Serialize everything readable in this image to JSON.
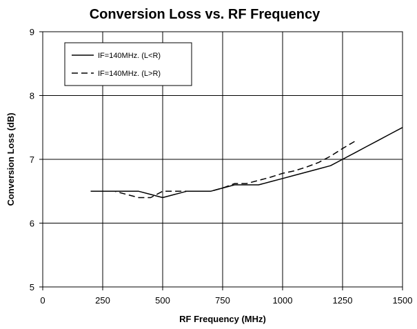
{
  "chart_data": {
    "type": "line",
    "title": "Conversion Loss vs. RF Frequency",
    "xlabel": "RF Frequency (MHz)",
    "ylabel": "Conversion Loss (dB)",
    "xlim": [
      0,
      1500
    ],
    "ylim": [
      5,
      9
    ],
    "xticks": [
      0,
      250,
      500,
      750,
      1000,
      1250,
      1500
    ],
    "yticks": [
      5,
      6,
      7,
      8,
      9
    ],
    "grid": true,
    "legend_position": "top-left",
    "series": [
      {
        "name": "IF=140MHz. (L<R)",
        "style": "solid",
        "color": "#000000",
        "x": [
          200,
          250,
          300,
          350,
          400,
          450,
          500,
          550,
          600,
          650,
          700,
          750,
          800,
          850,
          900,
          950,
          1000,
          1050,
          1100,
          1150,
          1200,
          1250,
          1300,
          1350,
          1400,
          1450,
          1500
        ],
        "y": [
          6.5,
          6.5,
          6.5,
          6.5,
          6.5,
          6.45,
          6.4,
          6.45,
          6.5,
          6.5,
          6.5,
          6.55,
          6.6,
          6.6,
          6.6,
          6.65,
          6.7,
          6.75,
          6.8,
          6.85,
          6.9,
          7.0,
          7.1,
          7.2,
          7.3,
          7.4,
          7.5
        ]
      },
      {
        "name": "IF=140MHz. (L>R)",
        "style": "dashed",
        "color": "#000000",
        "x": [
          200,
          250,
          300,
          350,
          400,
          450,
          500,
          550,
          600,
          650,
          700,
          750,
          800,
          850,
          900,
          950,
          1000,
          1050,
          1100,
          1150,
          1200,
          1250,
          1300
        ],
        "y": [
          6.5,
          6.5,
          6.5,
          6.45,
          6.4,
          6.4,
          6.5,
          6.5,
          6.5,
          6.5,
          6.5,
          6.55,
          6.62,
          6.62,
          6.67,
          6.72,
          6.78,
          6.82,
          6.88,
          6.95,
          7.05,
          7.17,
          7.28
        ]
      }
    ]
  }
}
